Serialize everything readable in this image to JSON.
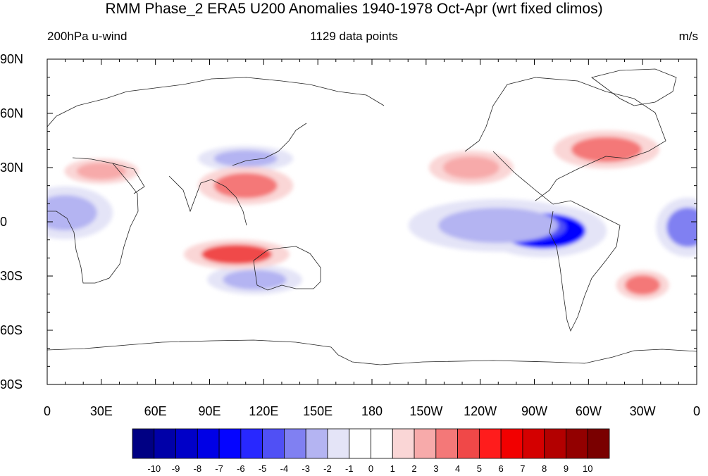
{
  "title": "RMM Phase_2 ERA5 U200 Anomalies 1940-1978 Oct-Apr (wrt fixed climos)",
  "subtitle_left": "200hPa u-wind",
  "subtitle_center": "1129 data points",
  "subtitle_right": "m/s",
  "lat_labels": [
    "90N",
    "60N",
    "30N",
    "0",
    "30S",
    "60S",
    "90S"
  ],
  "lon_labels": [
    "0",
    "30E",
    "60E",
    "90E",
    "120E",
    "150E",
    "180",
    "150W",
    "120W",
    "90W",
    "60W",
    "30W",
    "0"
  ],
  "colorbar": {
    "labels": [
      "-10",
      "-9",
      "-8",
      "-7",
      "-6",
      "-5",
      "-4",
      "-3",
      "-2",
      "-1",
      "0",
      "1",
      "2",
      "3",
      "4",
      "5",
      "6",
      "7",
      "8",
      "9",
      "10"
    ],
    "colors": [
      "#000083",
      "#0000a8",
      "#0000c8",
      "#0000e6",
      "#0505ff",
      "#2828ff",
      "#5050f5",
      "#8080f2",
      "#b4b4f2",
      "#e4e4f7",
      "#ffffff",
      "#ffffff",
      "#fad6d6",
      "#f7aaaa",
      "#f47878",
      "#f04848",
      "#ff1c1c",
      "#f20000",
      "#d40000",
      "#b30000",
      "#930000",
      "#7a0000"
    ]
  },
  "chart_data": {
    "type": "heatmap",
    "variable": "200hPa u-wind anomaly",
    "units": "m/s",
    "lat_range": [
      -90,
      90
    ],
    "lon_range": [
      0,
      360
    ],
    "features": [
      {
        "lon": 275,
        "lat": -5,
        "value": -7
      },
      {
        "lon": 270,
        "lat": -3,
        "value": -5
      },
      {
        "lon": 250,
        "lat": -2,
        "value": -3
      },
      {
        "lon": 355,
        "lat": -3,
        "value": -4
      },
      {
        "lon": 10,
        "lat": 5,
        "value": -3
      },
      {
        "lon": 110,
        "lat": 35,
        "value": -3
      },
      {
        "lon": 115,
        "lat": -32,
        "value": -3
      },
      {
        "lon": 110,
        "lat": 20,
        "value": 3
      },
      {
        "lon": 105,
        "lat": -18,
        "value": 4
      },
      {
        "lon": 310,
        "lat": 40,
        "value": 3
      },
      {
        "lon": 330,
        "lat": -35,
        "value": 3
      },
      {
        "lon": 235,
        "lat": 30,
        "value": 2
      },
      {
        "lon": 30,
        "lat": 28,
        "value": 2
      }
    ]
  }
}
